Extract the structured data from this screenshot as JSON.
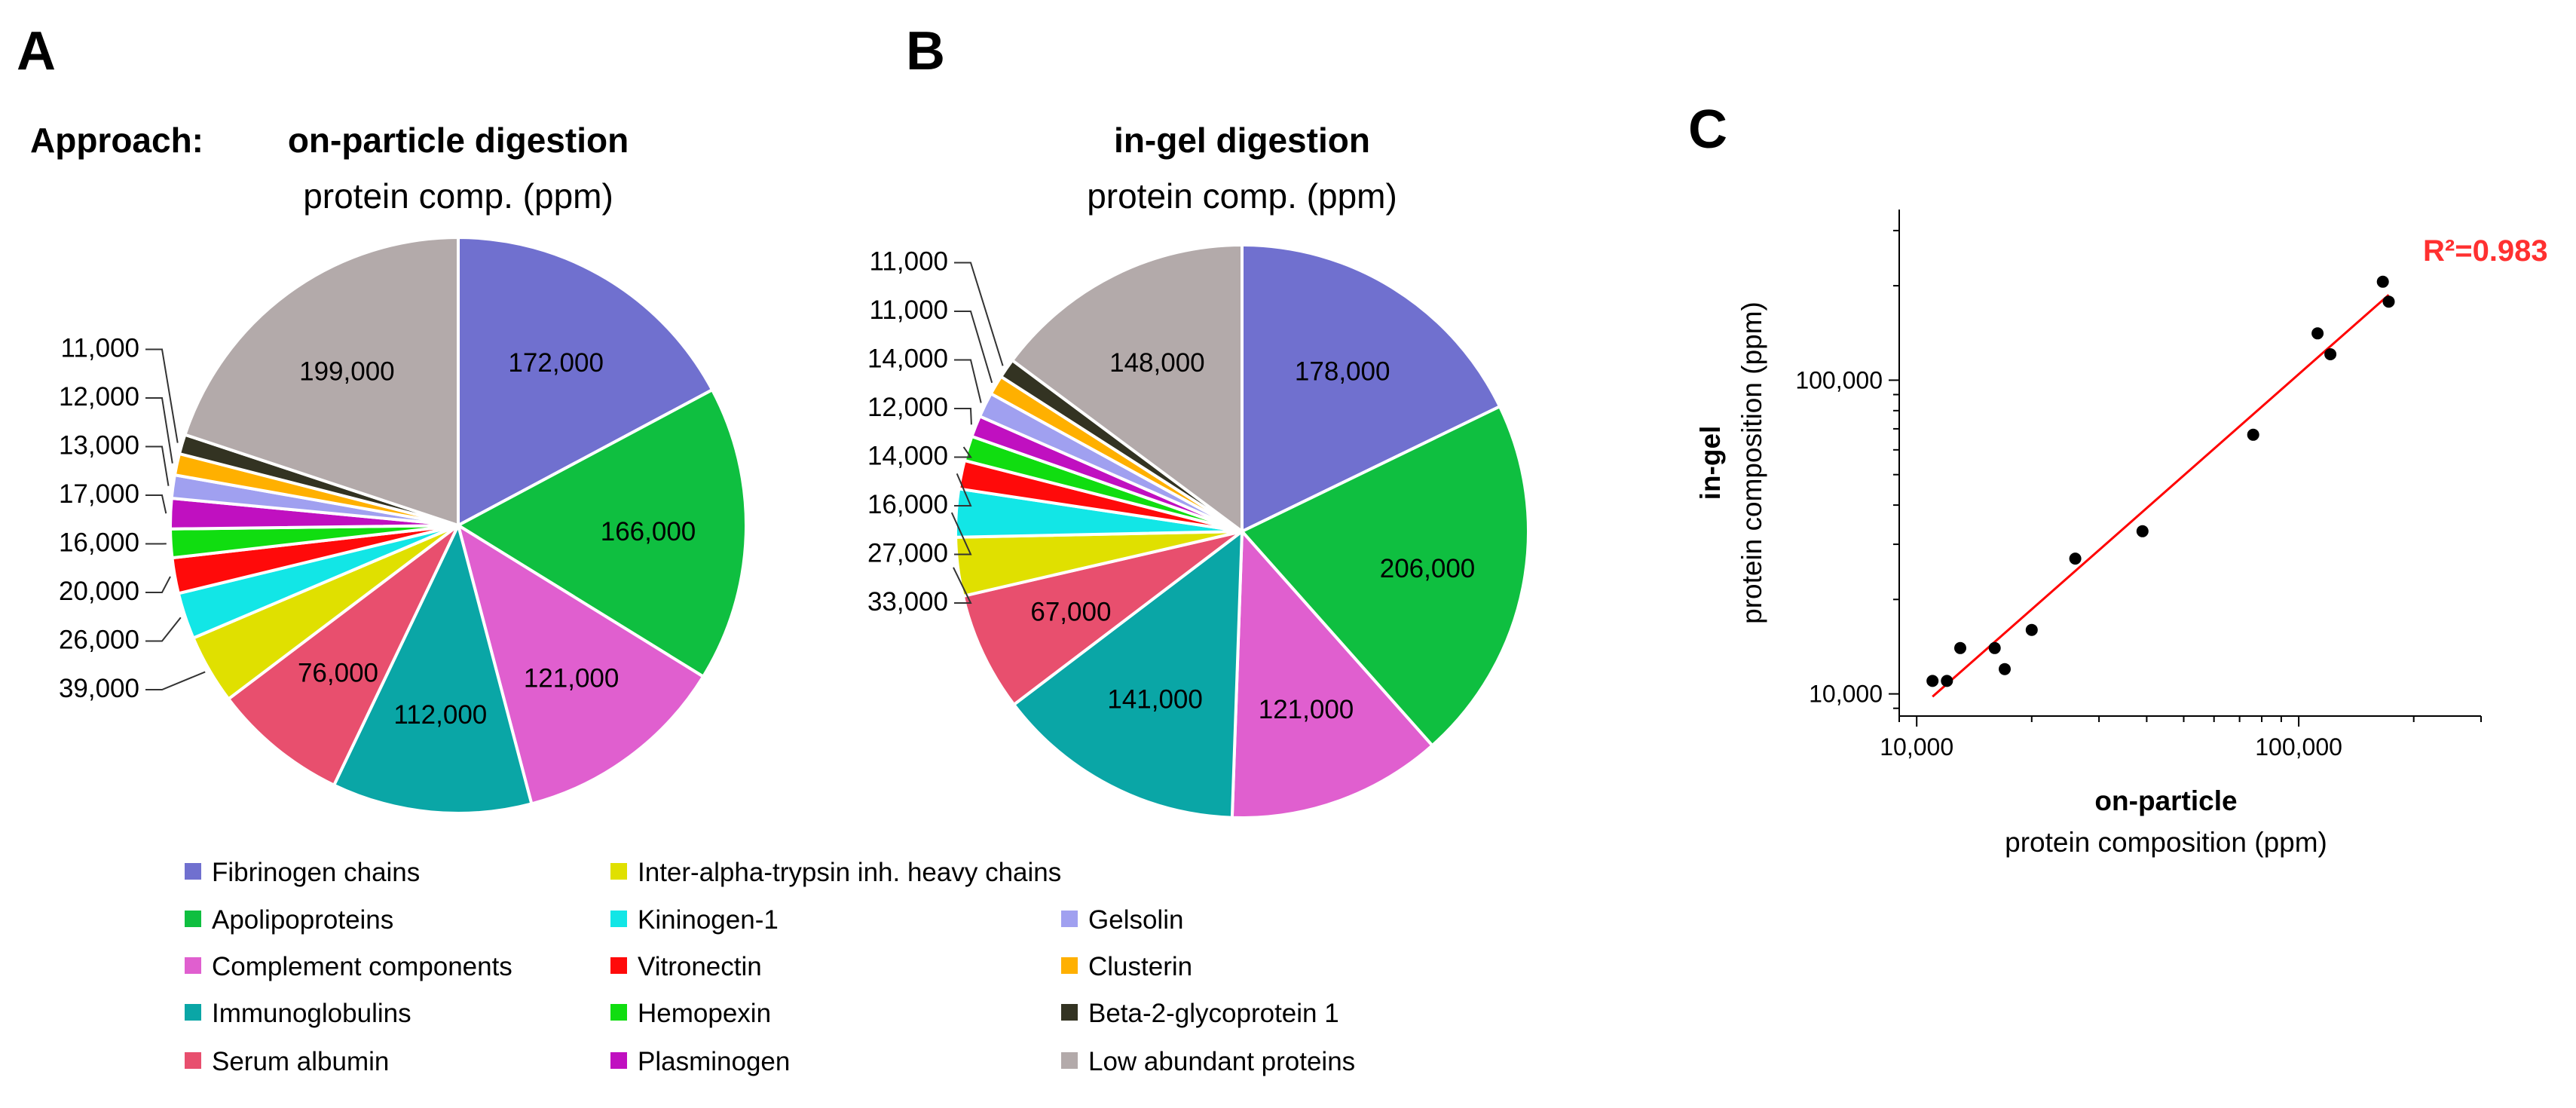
{
  "panels": {
    "a": "A",
    "b": "B",
    "c": "C"
  },
  "approach_label": "Approach:",
  "legend": [
    {
      "name": "Fibrinogen chains",
      "color": "#7070cf"
    },
    {
      "name": "Apolipoproteins",
      "color": "#0fbf40"
    },
    {
      "name": "Complement components",
      "color": "#e05fcf"
    },
    {
      "name": "Immunoglobulins",
      "color": "#0aa6a6"
    },
    {
      "name": "Serum albumin",
      "color": "#e84f6e"
    },
    {
      "name": "Inter-alpha-trypsin inh. heavy chains",
      "color": "#e0e000"
    },
    {
      "name": "Kininogen-1",
      "color": "#12e6e6"
    },
    {
      "name": "Vitronectin",
      "color": "#ff0a0a"
    },
    {
      "name": "Hemopexin",
      "color": "#10dd10"
    },
    {
      "name": "Plasminogen",
      "color": "#c010c0"
    },
    {
      "name": "Gelsolin",
      "color": "#a0a0f0"
    },
    {
      "name": "Clusterin",
      "color": "#ffb000"
    },
    {
      "name": "Beta-2-glycoprotein 1",
      "color": "#333322"
    },
    {
      "name": "Low abundant proteins",
      "color": "#b3aaaa"
    }
  ],
  "chart_data": [
    {
      "type": "pie",
      "title": "on-particle digestion",
      "subtitle": "protein comp. (ppm)",
      "labels": [
        "Fibrinogen chains",
        "Apolipoproteins",
        "Complement components",
        "Immunoglobulins",
        "Serum albumin",
        "Inter-alpha-trypsin inh. heavy chains",
        "Kininogen-1",
        "Vitronectin",
        "Hemopexin",
        "Plasminogen",
        "Gelsolin",
        "Clusterin",
        "Beta-2-glycoprotein 1",
        "Low abundant proteins"
      ],
      "values": [
        172000,
        166000,
        121000,
        112000,
        76000,
        39000,
        26000,
        20000,
        16000,
        17000,
        13000,
        12000,
        11000,
        199000
      ],
      "value_labels": [
        "172,000",
        "166,000",
        "121,000",
        "112,000",
        "76,000",
        "39,000",
        "26,000",
        "20,000",
        "16,000",
        "17,000",
        "13,000",
        "12,000",
        "11,000",
        "199,000"
      ]
    },
    {
      "type": "pie",
      "title": "in-gel digestion",
      "subtitle": "protein comp. (ppm)",
      "labels": [
        "Fibrinogen chains",
        "Apolipoproteins",
        "Complement components",
        "Immunoglobulins",
        "Serum albumin",
        "Inter-alpha-trypsin inh. heavy chains",
        "Kininogen-1",
        "Vitronectin",
        "Hemopexin",
        "Plasminogen",
        "Gelsolin",
        "Clusterin",
        "Beta-2-glycoprotein 1",
        "Low abundant proteins"
      ],
      "values": [
        178000,
        206000,
        121000,
        141000,
        67000,
        33000,
        27000,
        16000,
        14000,
        12000,
        14000,
        11000,
        11000,
        148000
      ],
      "value_labels": [
        "178,000",
        "206,000",
        "121,000",
        "141,000",
        "67,000",
        "33,000",
        "27,000",
        "16,000",
        "14,000",
        "12,000",
        "14,000",
        "11,000",
        "11,000",
        "148,000"
      ]
    },
    {
      "type": "scatter",
      "xscale": "log",
      "yscale": "log",
      "xlabel_bold": "on-particle",
      "xlabel": "protein composition (ppm)",
      "ylabel_bold": "in-gel",
      "ylabel": "protein composition (ppm)",
      "xlim": [
        9000,
        300000
      ],
      "ylim": [
        8500,
        350000
      ],
      "xticks": [
        10000,
        100000
      ],
      "xtick_labels": [
        "10,000",
        "100,000"
      ],
      "yticks": [
        10000,
        100000
      ],
      "ytick_labels": [
        "10,000",
        "100,000"
      ],
      "points": [
        {
          "x": 11000,
          "y": 11000
        },
        {
          "x": 12000,
          "y": 11000
        },
        {
          "x": 13000,
          "y": 14000
        },
        {
          "x": 16000,
          "y": 14000
        },
        {
          "x": 17000,
          "y": 12000
        },
        {
          "x": 20000,
          "y": 16000
        },
        {
          "x": 26000,
          "y": 27000
        },
        {
          "x": 39000,
          "y": 33000
        },
        {
          "x": 76000,
          "y": 67000
        },
        {
          "x": 112000,
          "y": 141000
        },
        {
          "x": 121000,
          "y": 121000
        },
        {
          "x": 166000,
          "y": 206000
        },
        {
          "x": 172000,
          "y": 178000
        }
      ],
      "fit_line": {
        "x1": 11000,
        "y1": 9800,
        "x2": 172000,
        "y2": 187000,
        "color": "#ff0000"
      },
      "annotation": "R²=0.983",
      "annotation_color": "#ff3030"
    }
  ]
}
